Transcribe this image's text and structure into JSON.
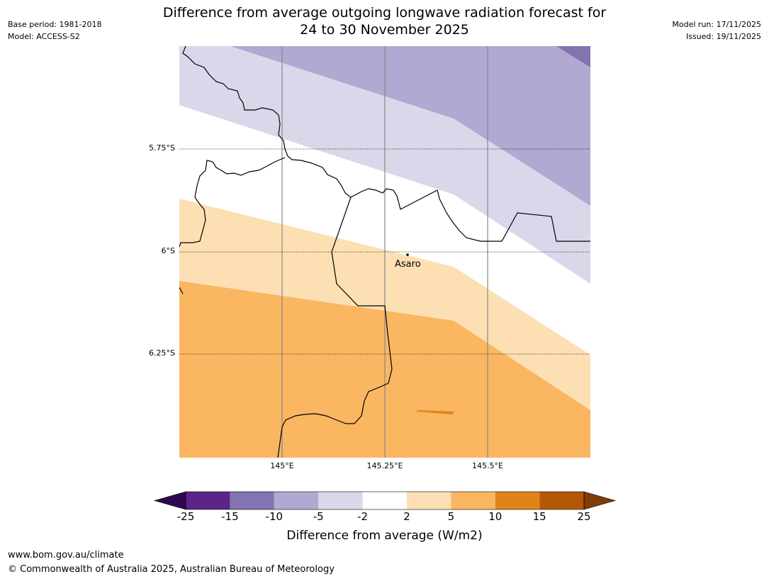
{
  "header": {
    "title_line1": "Difference from average outgoing longwave radiation forecast for",
    "title_line2": "24 to 30 November 2025",
    "base_period": "Base period: 1981-2018",
    "model": "Model: ACCESS-S2",
    "model_run": "Model run: 17/11/2025",
    "issued": "Issued: 19/11/2025"
  },
  "map": {
    "lat_labels": [
      "5.75°S",
      "6°S",
      "6.25°S"
    ],
    "lon_labels": [
      "145°E",
      "145.25°E",
      "145.5°E"
    ],
    "place": {
      "name": "Asaro"
    }
  },
  "colorbar": {
    "ticks": [
      "-25",
      "-15",
      "-10",
      "-5",
      "-2",
      "2",
      "5",
      "10",
      "15",
      "25"
    ],
    "colors": [
      "#2d0a4e",
      "#5a2489",
      "#8373b1",
      "#b1a9d1",
      "#d9d8ea",
      "#ffffff",
      "#fddfb4",
      "#fab661",
      "#e0841a",
      "#b35806",
      "#7f3b08"
    ],
    "label": "Difference from average (W/m2)"
  },
  "footer": {
    "url": "www.bom.gov.au/climate",
    "copyright": "© Commonwealth of Australia 2025, Australian Bureau of Meteorology"
  }
}
